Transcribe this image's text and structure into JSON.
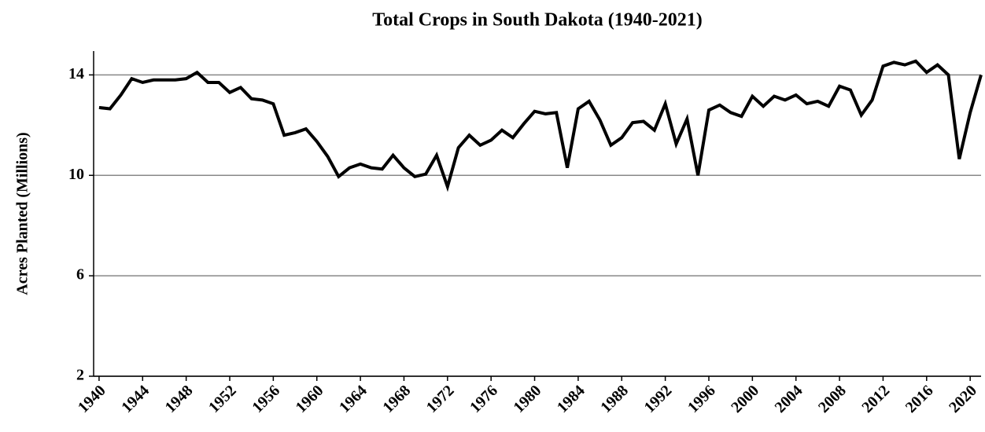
{
  "chart_data": {
    "type": "line",
    "title": "Total Crops in South Dakota (1940-2021)",
    "y_label": "Acres Planted (Millions)",
    "x": [
      1940,
      1941,
      1942,
      1943,
      1944,
      1945,
      1946,
      1947,
      1948,
      1949,
      1950,
      1951,
      1952,
      1953,
      1954,
      1955,
      1956,
      1957,
      1958,
      1959,
      1960,
      1961,
      1962,
      1963,
      1964,
      1965,
      1966,
      1967,
      1968,
      1969,
      1970,
      1971,
      1972,
      1973,
      1974,
      1975,
      1976,
      1977,
      1978,
      1979,
      1980,
      1981,
      1982,
      1983,
      1984,
      1985,
      1986,
      1987,
      1988,
      1989,
      1990,
      1991,
      1992,
      1993,
      1994,
      1995,
      1996,
      1997,
      1998,
      1999,
      2000,
      2001,
      2002,
      2003,
      2004,
      2005,
      2006,
      2007,
      2008,
      2009,
      2010,
      2011,
      2012,
      2013,
      2014,
      2015,
      2016,
      2017,
      2018,
      2019,
      2020,
      2021
    ],
    "series": [
      {
        "color": "#000000",
        "values": [
          12.7,
          12.65,
          13.2,
          13.85,
          13.7,
          13.8,
          13.8,
          13.8,
          13.85,
          14.1,
          13.7,
          13.7,
          13.3,
          13.5,
          13.05,
          13.0,
          12.85,
          11.6,
          11.7,
          11.85,
          11.35,
          10.75,
          9.95,
          10.3,
          10.45,
          10.3,
          10.25,
          10.8,
          10.3,
          9.95,
          10.05,
          10.8,
          9.55,
          11.1,
          11.6,
          11.2,
          11.4,
          11.8,
          11.5,
          12.05,
          12.55,
          12.45,
          12.5,
          10.3,
          12.65,
          12.95,
          12.2,
          11.2,
          11.5,
          12.1,
          12.15,
          11.8,
          12.85,
          11.25,
          12.25,
          10.0,
          12.6,
          12.8,
          12.5,
          12.35,
          13.15,
          12.75,
          13.15,
          13.0,
          13.2,
          12.85,
          12.95,
          12.75,
          13.55,
          13.4,
          12.4,
          13.0,
          14.35,
          14.5,
          14.4,
          14.55,
          14.1,
          14.4,
          14.0,
          10.65,
          12.5,
          14.0
        ]
      }
    ],
    "xlim": [
      1939.5,
      2021
    ],
    "xticks": [
      1940,
      1944,
      1948,
      1952,
      1956,
      1960,
      1964,
      1968,
      1972,
      1976,
      1980,
      1984,
      1988,
      1992,
      1996,
      2000,
      2004,
      2008,
      2012,
      2016,
      2020
    ],
    "ylim": [
      2,
      14.95
    ],
    "yticks": [
      2,
      6,
      10,
      14
    ],
    "grid": true
  }
}
